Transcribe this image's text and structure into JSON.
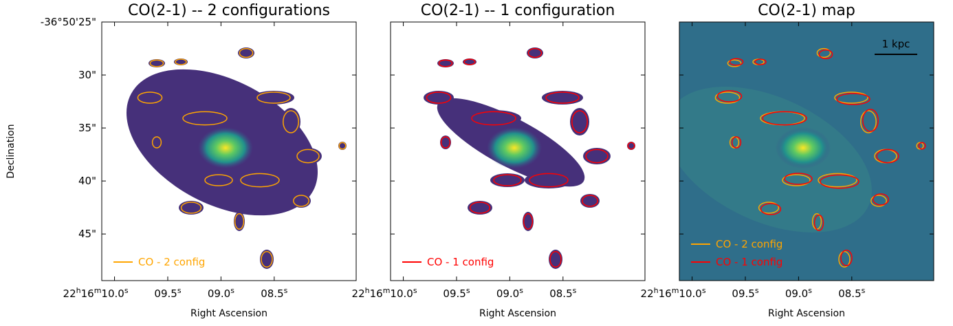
{
  "chart_data": [
    {
      "type": "image",
      "title": "CO(2-1) -- 2 configurations",
      "x_label": "Right Ascension",
      "y_label": "Declination",
      "xlim": [
        10.12,
        7.73
      ],
      "ylim": [
        25,
        49.4
      ],
      "xticks": [
        {
          "value": 10.0,
          "label": "22h16m10.0s"
        },
        {
          "value": 9.5,
          "label": "09.5s"
        },
        {
          "value": 9.0,
          "label": "09.0s"
        },
        {
          "value": 8.5,
          "label": "08.5s"
        }
      ],
      "yticks": [
        {
          "value": 25,
          "label": "-36°50'25\""
        },
        {
          "value": 30,
          "label": "30\""
        },
        {
          "value": 35,
          "label": "35\""
        },
        {
          "value": 40,
          "label": "40\""
        },
        {
          "value": 45,
          "label": "45\""
        }
      ],
      "series": [
        {
          "name": "CO - 2 config",
          "color": "#ffa500"
        }
      ]
    },
    {
      "type": "image",
      "title": "CO(2-1) -- 1 configuration",
      "x_label": "Right Ascension",
      "xlim": [
        10.12,
        7.73
      ],
      "ylim": [
        25,
        49.4
      ],
      "xticks": [
        {
          "value": 10.0,
          "label": "22h16m10.0s"
        },
        {
          "value": 9.5,
          "label": "09.5s"
        },
        {
          "value": 9.0,
          "label": "09.0s"
        },
        {
          "value": 8.5,
          "label": "08.5s"
        }
      ],
      "yticks": [
        25,
        30,
        35,
        40,
        45
      ],
      "series": [
        {
          "name": "CO - 1 config",
          "color": "#ff0000"
        }
      ]
    },
    {
      "type": "image",
      "title": "CO(2-1) map",
      "x_label": "Right Ascension",
      "annotation": "1 kpc",
      "xlim": [
        10.12,
        7.73
      ],
      "ylim": [
        25,
        49.4
      ],
      "xticks": [
        {
          "value": 10.0,
          "label": "22h16m10.0s"
        },
        {
          "value": 9.5,
          "label": "09.5s"
        },
        {
          "value": 9.0,
          "label": "09.0s"
        },
        {
          "value": 8.5,
          "label": "08.5s"
        }
      ],
      "yticks": [
        25,
        30,
        35,
        40,
        45
      ],
      "series": [
        {
          "name": "CO - 2 config",
          "color": "#ffa500"
        },
        {
          "name": "CO - 1 config",
          "color": "#ff0000"
        }
      ]
    }
  ]
}
